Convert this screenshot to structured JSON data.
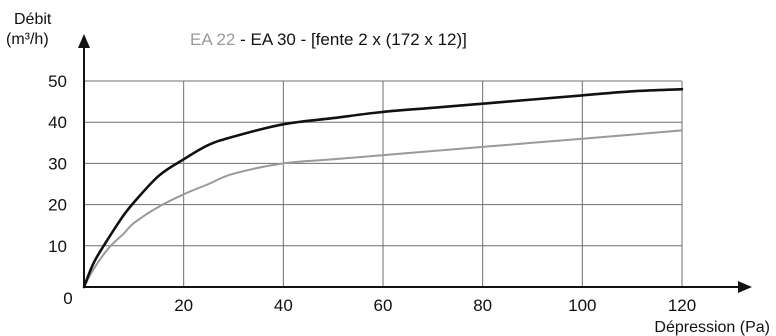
{
  "chart_data": {
    "type": "line",
    "title_parts": [
      {
        "text": "EA 22",
        "color": "#9a9a9a"
      },
      {
        "text": " - ",
        "color": "#111111"
      },
      {
        "text": "EA 30 - [fente 2 x (172 x 12)]",
        "color": "#111111"
      }
    ],
    "ylabel_line1": "Débit",
    "ylabel_line2": "(m³/h)",
    "xlabel": "Dépression (Pa)",
    "xlim": [
      0,
      120
    ],
    "ylim": [
      0,
      50
    ],
    "x_ticks": [
      "20",
      "40",
      "60",
      "80",
      "100",
      "120"
    ],
    "y_ticks": [
      "10",
      "20",
      "30",
      "40",
      "50"
    ],
    "origin_label": "0",
    "grid": true,
    "series": [
      {
        "name": "EA 22",
        "color": "#9a9a9a",
        "x": [
          0,
          2,
          5,
          8,
          10,
          15,
          20,
          25,
          30,
          40,
          50,
          60,
          70,
          80,
          90,
          100,
          110,
          120
        ],
        "y": [
          0,
          4.5,
          9.5,
          13,
          15.5,
          19.5,
          22.5,
          25,
          27.5,
          30,
          31,
          32,
          33,
          34,
          35,
          36,
          37,
          38
        ]
      },
      {
        "name": "EA 30",
        "color": "#111111",
        "x": [
          0,
          2,
          5,
          8,
          10,
          15,
          20,
          25,
          30,
          40,
          50,
          60,
          70,
          80,
          90,
          100,
          110,
          120
        ],
        "y": [
          0,
          6,
          12,
          17.5,
          20.5,
          27,
          31,
          34.5,
          36.5,
          39.5,
          41,
          42.5,
          43.5,
          44.5,
          45.5,
          46.5,
          47.5,
          48
        ]
      }
    ]
  }
}
